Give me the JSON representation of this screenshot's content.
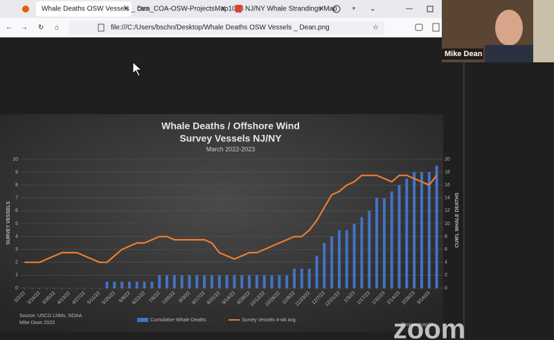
{
  "browser": {
    "tabs": [
      "Whale Deaths OSW Vessels _ Dea",
      "csm_COA-OSW-ProjectsMap1024",
      "NJ/NY Whale Strandings Map"
    ],
    "address": "file:///C:/Users/bschn/Desktop/Whale Deaths OSW Vessels _ Dean.png"
  },
  "participant": {
    "name": "Mike Dean"
  },
  "watermark": "zoom",
  "chart_data": {
    "type": "combo",
    "title": [
      "Whale Deaths / Offshore Wind",
      "Survey Vessels NJ/NY"
    ],
    "subtitle": "March 2022-2023",
    "ylabel": "SURVEY VESSELS",
    "y2label": "CUM'L WHALE DEATHS",
    "source": [
      "Source: USCG LNMs, NOAA",
      "Mike Dean 2023"
    ],
    "credit": "@mikerdean22",
    "categories": [
      "3/2/22",
      null,
      "3/16/22",
      null,
      "3/30/22",
      null,
      "4/13/22",
      null,
      "4/27/22",
      null,
      "5/11/22",
      null,
      "5/25/22",
      null,
      "6/8/22",
      null,
      "6/22/22",
      null,
      "7/6/22",
      null,
      "7/20/22",
      null,
      "8/3/22",
      null,
      "8/17/22",
      null,
      "8/31/22",
      null,
      "9/14/22",
      null,
      "9/28/22",
      null,
      "10/12/22",
      null,
      "10/26/22",
      null,
      "11/9/22",
      null,
      "11/23/22",
      null,
      "12/7/22",
      null,
      "12/21/22",
      null,
      "1/3/23",
      null,
      "1/17/23",
      null,
      "1/31/23",
      null,
      "2/14/23",
      null,
      "2/28/23",
      null,
      "3/14/23",
      null
    ],
    "series": [
      {
        "name": "Cumulative Whale Deaths",
        "type": "bar",
        "axis": "y2",
        "color": "#4472c4",
        "values": [
          0,
          0,
          0,
          0,
          0,
          0,
          0,
          0,
          0,
          0,
          0,
          1,
          1,
          1,
          1,
          1,
          1,
          1,
          2,
          2,
          2,
          2,
          2,
          2,
          2,
          2,
          2,
          2,
          2,
          2,
          2,
          2,
          2,
          2,
          2,
          2,
          3,
          3,
          3,
          5,
          7,
          8,
          9,
          9,
          10,
          11,
          12,
          14,
          14,
          15,
          16,
          17,
          18,
          18,
          18,
          19
        ]
      },
      {
        "name": "Survey Vessels 4-wk avg.",
        "type": "line",
        "color": "#ed7d31",
        "values": [
          2,
          2,
          2,
          2.25,
          2.5,
          2.75,
          2.75,
          2.75,
          2.5,
          2.25,
          2,
          2,
          2.5,
          3,
          3.25,
          3.5,
          3.5,
          3.75,
          4,
          4,
          3.75,
          3.75,
          3.75,
          3.75,
          3.75,
          3.5,
          2.75,
          2.5,
          2.25,
          2.5,
          2.75,
          2.75,
          3,
          3.25,
          3.5,
          3.75,
          4,
          4,
          4.5,
          5.25,
          6.25,
          7.25,
          7.5,
          8,
          8.25,
          8.75,
          8.75,
          8.75,
          8.5,
          8.25,
          8.75,
          8.75,
          8.5,
          8.25,
          8,
          8.75
        ]
      }
    ],
    "ylim": [
      0,
      10
    ],
    "yticks": [
      0,
      1,
      2,
      3,
      4,
      5,
      6,
      7,
      8,
      9,
      10
    ],
    "y2lim": [
      0,
      20
    ],
    "y2ticks": [
      0,
      2,
      4,
      6,
      8,
      10,
      12,
      14,
      16,
      18,
      20
    ],
    "grid": true
  }
}
